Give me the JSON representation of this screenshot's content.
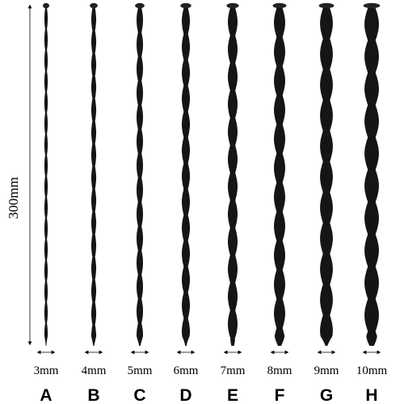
{
  "length_label": "300mm",
  "items": [
    {
      "letter": "A",
      "size": "3mm"
    },
    {
      "letter": "B",
      "size": "4mm"
    },
    {
      "letter": "C",
      "size": "5mm"
    },
    {
      "letter": "D",
      "size": "6mm"
    },
    {
      "letter": "E",
      "size": "7mm"
    },
    {
      "letter": "F",
      "size": "8mm"
    },
    {
      "letter": "G",
      "size": "9mm"
    },
    {
      "letter": "H",
      "size": "10mm"
    }
  ]
}
